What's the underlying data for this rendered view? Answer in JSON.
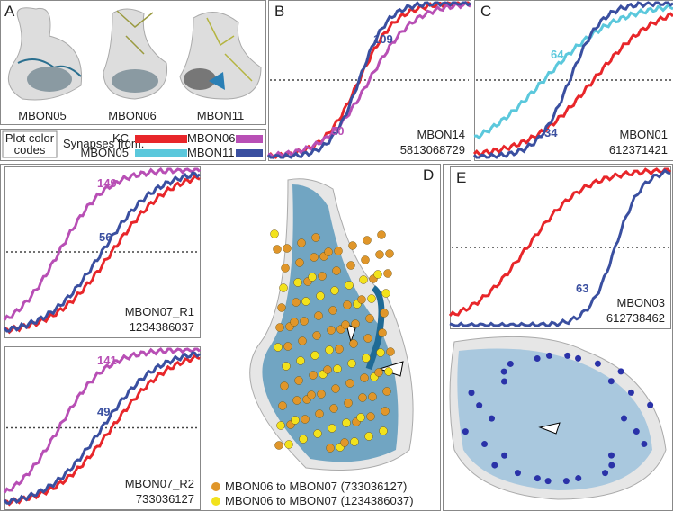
{
  "panel_a": {
    "label": "A",
    "neurons": [
      "MBON05",
      "MBON06",
      "MBON11"
    ]
  },
  "legend": {
    "title": "Plot color codes",
    "subtitle": "Synapses from:",
    "entries": [
      {
        "name": "KC",
        "color": "#e8262a"
      },
      {
        "name": "MBON06",
        "color": "#b84fb5"
      },
      {
        "name": "MBON05",
        "color": "#5bc8dc"
      },
      {
        "name": "MBON11",
        "color": "#3a4fa0"
      }
    ]
  },
  "plots": [
    {
      "label": "B",
      "name": "MBON14",
      "id": "5813068729",
      "annotations": [
        {
          "text": 109,
          "color": "#3a4fa0"
        },
        {
          "text": 50,
          "color": "#b84fb5"
        }
      ]
    },
    {
      "label": "C",
      "name": "MBON01",
      "id": "612371421",
      "annotations": [
        {
          "text": 64,
          "color": "#5bc8dc"
        },
        {
          "text": 34,
          "color": "#3a4fa0"
        }
      ]
    },
    {
      "name": "MBON07_R1",
      "id": "1234386037",
      "annotations": [
        {
          "text": 149,
          "color": "#b84fb5"
        },
        {
          "text": 56,
          "color": "#3a4fa0"
        }
      ]
    },
    {
      "name": "MBON07_R2",
      "id": "733036127",
      "annotations": [
        {
          "text": 141,
          "color": "#b84fb5"
        },
        {
          "text": 49,
          "color": "#3a4fa0"
        }
      ]
    },
    {
      "label": "E",
      "name": "MBON03",
      "id": "612738462",
      "annotations": [
        {
          "text": 63,
          "color": "#3a4fa0"
        }
      ]
    }
  ],
  "panel_d": {
    "label": "D",
    "legend": [
      {
        "text": "MBON06 to MBON07 (733036127)",
        "color": "#e0962a"
      },
      {
        "text": "MBON06 to MBON07 (1234386037)",
        "color": "#f2e21c"
      }
    ]
  }
}
